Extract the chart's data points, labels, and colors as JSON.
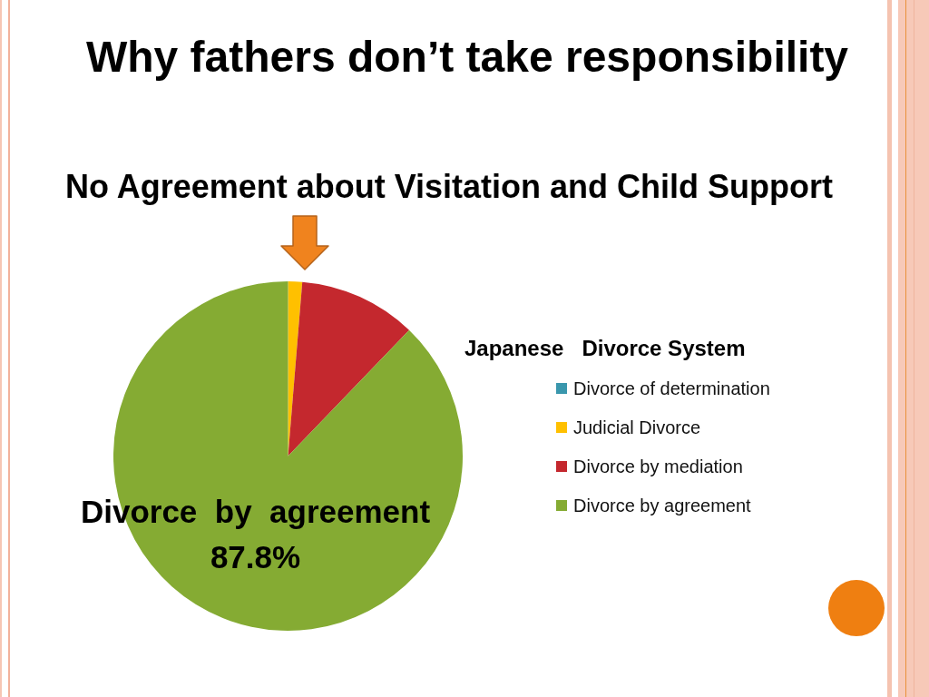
{
  "chart_data": {
    "type": "pie",
    "title": "Why fathers don’t take responsibility",
    "subtitle": "No Agreement about Visitation and Child Support",
    "legend_title": "Japanese   Divorce System",
    "categories": [
      "Divorce of determination",
      "Judicial Divorce",
      "Divorce by mediation",
      "Divorce by agreement"
    ],
    "values": [
      0,
      1.3,
      10.9,
      87.8
    ],
    "colors": [
      "#3a97ad",
      "#ffc000",
      "#c4282e",
      "#85ab33"
    ],
    "value_labels": [
      null,
      null,
      null,
      "Divorce  by  agreement\n87.8%"
    ],
    "legend": "right"
  }
}
